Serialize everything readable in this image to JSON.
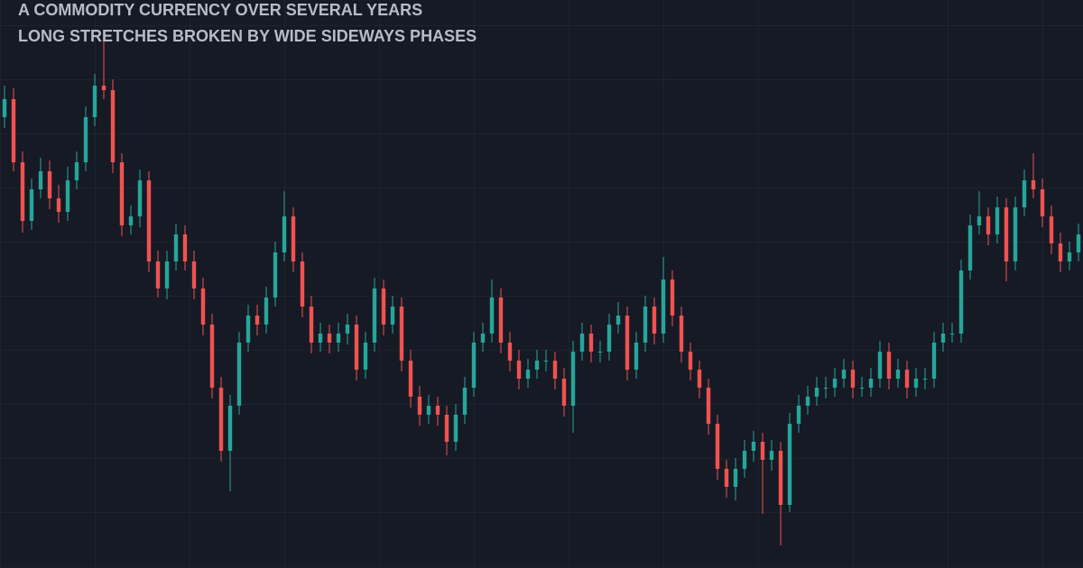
{
  "chart_data": {
    "type": "candlestick",
    "title": "A COMMODITY CURRENCY OVER SEVERAL YEARS",
    "subtitle": "LONG STRETCHES BROKEN BY WIDE SIDEWAYS PHASES",
    "ylim": [
      0,
      630
    ],
    "up_color": "#26a69a",
    "down_color": "#ef5350",
    "open": [
      500,
      520,
      450,
      385,
      420,
      440,
      410,
      395,
      430,
      450,
      500,
      535,
      530,
      450,
      380,
      390,
      430,
      340,
      310,
      340,
      370,
      340,
      310,
      270,
      200,
      130,
      180,
      250,
      280,
      270,
      300,
      350,
      390,
      340,
      290,
      250,
      260,
      250,
      260,
      270,
      220,
      250,
      310,
      270,
      290,
      230,
      190,
      170,
      180,
      170,
      140,
      170,
      200,
      250,
      260,
      300,
      250,
      230,
      210,
      220,
      230,
      230,
      210,
      180,
      240,
      260,
      240,
      240,
      270,
      280,
      220,
      250,
      290,
      260,
      320,
      280,
      240,
      220,
      200,
      160,
      110,
      90,
      110,
      130,
      140,
      120,
      130,
      70,
      160,
      180,
      190,
      200,
      200,
      210,
      220,
      200,
      200,
      210,
      240,
      210,
      220,
      200,
      210,
      210,
      250,
      260,
      260,
      330,
      380,
      390,
      370,
      400,
      340,
      400,
      430,
      420,
      390,
      360,
      340,
      350
    ],
    "high": [
      535,
      532,
      462,
      432,
      455,
      452,
      425,
      445,
      462,
      512,
      548,
      585,
      542,
      460,
      402,
      442,
      440,
      352,
      352,
      382,
      380,
      352,
      322,
      282,
      212,
      192,
      262,
      292,
      292,
      312,
      362,
      418,
      400,
      350,
      302,
      272,
      270,
      272,
      282,
      280,
      262,
      322,
      320,
      302,
      300,
      242,
      202,
      192,
      190,
      180,
      182,
      212,
      262,
      272,
      320,
      310,
      262,
      242,
      232,
      242,
      242,
      240,
      222,
      252,
      272,
      270,
      252,
      282,
      295,
      290,
      262,
      302,
      300,
      345,
      330,
      290,
      250,
      230,
      210,
      170,
      120,
      122,
      142,
      152,
      150,
      142,
      140,
      172,
      192,
      202,
      212,
      212,
      222,
      232,
      230,
      212,
      222,
      252,
      250,
      232,
      230,
      222,
      222,
      262,
      272,
      272,
      342,
      392,
      418,
      400,
      412,
      410,
      412,
      442,
      460,
      432,
      402,
      372,
      362,
      382
    ],
    "low": [
      488,
      440,
      372,
      375,
      410,
      398,
      383,
      385,
      420,
      440,
      490,
      520,
      438,
      368,
      370,
      378,
      328,
      300,
      298,
      330,
      330,
      298,
      258,
      188,
      118,
      85,
      170,
      240,
      258,
      260,
      290,
      340,
      328,
      278,
      238,
      240,
      238,
      240,
      248,
      208,
      210,
      240,
      258,
      260,
      218,
      178,
      158,
      160,
      158,
      125,
      130,
      160,
      190,
      240,
      250,
      238,
      218,
      198,
      200,
      210,
      218,
      198,
      168,
      150,
      230,
      228,
      228,
      230,
      260,
      208,
      210,
      240,
      248,
      250,
      268,
      228,
      208,
      188,
      148,
      98,
      78,
      75,
      100,
      118,
      60,
      108,
      25,
      62,
      150,
      170,
      180,
      188,
      190,
      200,
      188,
      190,
      190,
      200,
      198,
      200,
      188,
      190,
      198,
      200,
      240,
      250,
      250,
      320,
      370,
      358,
      360,
      318,
      330,
      390,
      410,
      378,
      348,
      328,
      330,
      340
    ],
    "close": [
      520,
      450,
      385,
      420,
      440,
      410,
      395,
      430,
      450,
      500,
      535,
      530,
      450,
      380,
      390,
      430,
      340,
      310,
      340,
      370,
      340,
      310,
      270,
      200,
      130,
      180,
      250,
      280,
      270,
      300,
      350,
      390,
      340,
      290,
      250,
      260,
      250,
      260,
      270,
      220,
      250,
      310,
      270,
      290,
      230,
      190,
      170,
      180,
      170,
      140,
      170,
      200,
      250,
      260,
      300,
      250,
      230,
      210,
      220,
      230,
      230,
      210,
      180,
      240,
      260,
      240,
      240,
      270,
      280,
      220,
      250,
      290,
      260,
      320,
      280,
      240,
      220,
      200,
      160,
      110,
      90,
      110,
      130,
      140,
      120,
      130,
      70,
      160,
      180,
      190,
      200,
      200,
      210,
      220,
      200,
      200,
      210,
      240,
      210,
      220,
      200,
      210,
      210,
      250,
      260,
      260,
      330,
      380,
      390,
      370,
      400,
      340,
      400,
      430,
      420,
      390,
      360,
      340,
      350,
      370
    ]
  }
}
